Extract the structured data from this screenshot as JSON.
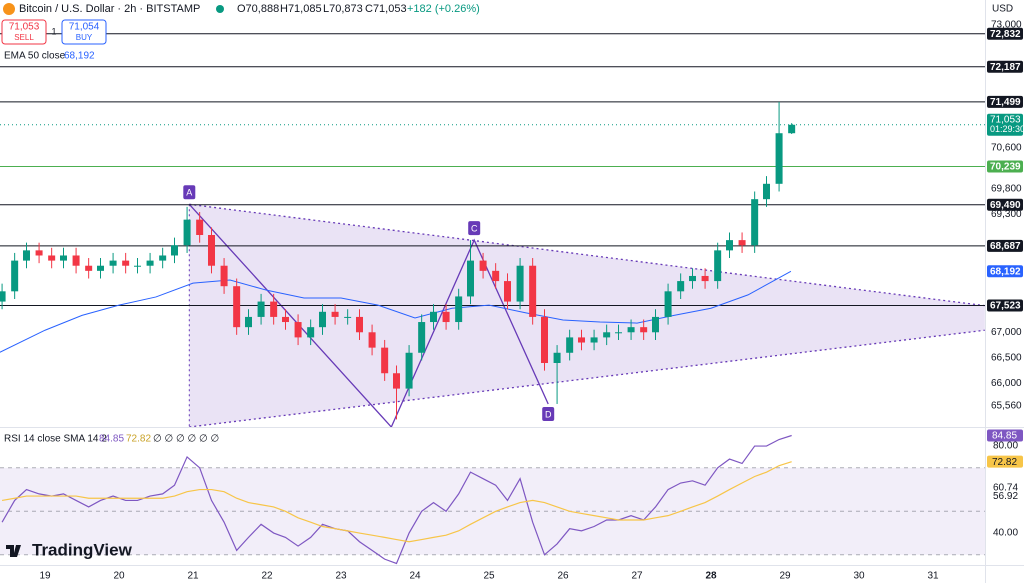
{
  "header": {
    "symbol": "Bitcoin / U.S. Dollar · 2h · BITSTAMP",
    "open": "O70,888",
    "high": "H71,085",
    "low": "L70,873",
    "close": "C71,053",
    "change": "+182 (+0.26%)",
    "sell_price": "71,053",
    "sell": "SELL",
    "spread": "1",
    "buy_price": "71,054",
    "buy": "BUY",
    "currency": "USD",
    "brand": "TradingView"
  },
  "chart_data": {
    "type": "candlestick",
    "x": [
      18.42,
      18.59,
      18.75,
      18.92,
      19.09,
      19.25,
      19.42,
      19.59,
      19.75,
      19.92,
      20.09,
      20.25,
      20.42,
      20.59,
      20.75,
      20.92,
      21.09,
      21.25,
      21.42,
      21.59,
      21.75,
      21.92,
      22.09,
      22.25,
      22.42,
      22.59,
      22.75,
      22.92,
      23.09,
      23.25,
      23.42,
      23.59,
      23.75,
      23.92,
      24.09,
      24.25,
      24.42,
      24.59,
      24.75,
      24.92,
      25.09,
      25.25,
      25.42,
      25.59,
      25.75,
      25.92,
      26.09,
      26.25,
      26.42,
      26.59,
      26.75,
      26.92,
      27.09,
      27.25,
      27.42,
      27.59,
      27.75,
      27.92,
      28.09,
      28.25,
      28.42,
      28.59,
      28.75,
      28.92,
      29.09
    ],
    "open": [
      67600,
      67800,
      68400,
      68600,
      68500,
      68400,
      68500,
      68300,
      68200,
      68300,
      68400,
      68300,
      68300,
      68400,
      68500,
      68700,
      69200,
      68900,
      68300,
      67900,
      67100,
      67300,
      67600,
      67300,
      67200,
      66900,
      67100,
      67400,
      67300,
      67300,
      67000,
      66700,
      66200,
      65900,
      66600,
      67200,
      67400,
      67200,
      67700,
      68400,
      68200,
      68000,
      67600,
      68300,
      67300,
      66400,
      66600,
      66900,
      66800,
      66900,
      67000,
      67000,
      67100,
      67000,
      67300,
      67800,
      68000,
      68100,
      68000,
      68600,
      68800,
      68700,
      69600,
      69900,
      70888
    ],
    "high": [
      67950,
      68550,
      68750,
      68750,
      68650,
      68650,
      68650,
      68450,
      68450,
      68550,
      68550,
      68450,
      68550,
      68650,
      68850,
      69450,
      69350,
      69050,
      68450,
      68050,
      67450,
      67750,
      67750,
      67450,
      67350,
      67250,
      67550,
      67550,
      67450,
      67450,
      67150,
      66850,
      66350,
      66750,
      67350,
      67550,
      67550,
      67850,
      68800,
      68550,
      68350,
      68150,
      68450,
      68450,
      67450,
      66750,
      67050,
      67050,
      67050,
      67150,
      67150,
      67250,
      67250,
      67450,
      67950,
      68150,
      68250,
      68250,
      68750,
      68950,
      68950,
      69750,
      70050,
      71499,
      71085
    ],
    "low": [
      67450,
      67650,
      68250,
      68350,
      68250,
      68250,
      68150,
      68050,
      68050,
      68150,
      68150,
      68150,
      68150,
      68250,
      68350,
      68550,
      68750,
      68150,
      67750,
      66950,
      66950,
      67150,
      67150,
      67050,
      66750,
      66750,
      66950,
      67150,
      67150,
      66850,
      66550,
      66050,
      65300,
      65750,
      66450,
      67050,
      67050,
      67050,
      67550,
      68050,
      67850,
      67450,
      67450,
      67150,
      66250,
      65600,
      66450,
      66650,
      66650,
      66750,
      66850,
      66850,
      66850,
      66850,
      67150,
      67650,
      67850,
      67850,
      67850,
      68450,
      68550,
      68550,
      69450,
      69750,
      70873
    ],
    "close": [
      67800,
      68400,
      68600,
      68500,
      68400,
      68500,
      68300,
      68200,
      68300,
      68400,
      68300,
      68300,
      68400,
      68500,
      68700,
      69200,
      68900,
      68300,
      67900,
      67100,
      67300,
      67600,
      67300,
      67200,
      66900,
      67100,
      67400,
      67300,
      67300,
      67000,
      66700,
      66200,
      65900,
      66600,
      67200,
      67400,
      67200,
      67700,
      68400,
      68200,
      68000,
      67600,
      68300,
      67300,
      66400,
      66600,
      66900,
      66800,
      66900,
      67000,
      67000,
      67100,
      67000,
      67300,
      67800,
      68000,
      68100,
      68000,
      68600,
      68800,
      68700,
      69600,
      69900,
      70888,
      71053
    ],
    "up_color": "#089981",
    "down_color": "#f23645",
    "xlim": [
      18.39,
      31.7
    ],
    "ylim": [
      65150,
      73490
    ],
    "xticks": [
      19,
      20,
      21,
      22,
      23,
      24,
      25,
      26,
      27,
      28,
      29,
      30,
      31
    ],
    "yticks": [
      {
        "value": 73000,
        "label": "73,000"
      },
      {
        "value": 70600,
        "label": "70,600"
      },
      {
        "value": 69800,
        "label": "69,800"
      },
      {
        "value": 69300,
        "label": "69,300"
      },
      {
        "value": 67000,
        "label": "67,000"
      },
      {
        "value": 66500,
        "label": "66,500"
      },
      {
        "value": 66000,
        "label": "66,000"
      },
      {
        "value": 65560,
        "label": "65,560"
      }
    ],
    "ema": {
      "name": "EMA 50 close",
      "color": "#2962ff",
      "label": "68,192",
      "x": [
        18.39,
        19,
        19.5,
        20,
        20.5,
        21,
        21.5,
        22,
        22.5,
        23,
        23.5,
        24,
        24.5,
        25,
        25.5,
        26,
        26.5,
        27,
        27.5,
        28,
        28.5,
        29.08
      ],
      "values": [
        66610,
        67040,
        67330,
        67530,
        67690,
        67960,
        68020,
        67820,
        67670,
        67670,
        67530,
        67280,
        67470,
        67530,
        67380,
        67240,
        67200,
        67180,
        67330,
        67470,
        67730,
        68192
      ]
    },
    "levels": [
      {
        "value": 72832,
        "label": "72,832",
        "color": "#131722"
      },
      {
        "value": 72187,
        "label": "72,187",
        "color": "#131722"
      },
      {
        "value": 71499,
        "label": "71,499",
        "color": "#131722"
      },
      {
        "value": 70239,
        "label": "70,239",
        "color": "#4caf50"
      },
      {
        "value": 69490,
        "label": "69,490",
        "color": "#131722"
      },
      {
        "value": 68687,
        "label": "68,687",
        "color": "#131722"
      },
      {
        "value": 67523,
        "label": "67,523",
        "color": "#131722"
      }
    ],
    "last": {
      "value": 71053,
      "label": "71,053",
      "timer": "01:29:30",
      "color": "#089981"
    },
    "pattern": {
      "color": "#673ab7",
      "points": [
        {
          "x": 20.95,
          "price": 69500,
          "label": "A"
        },
        {
          "x": 23.68,
          "price": 65150
        },
        {
          "x": 24.8,
          "price": 68800,
          "label": "C"
        },
        {
          "x": 25.8,
          "price": 65600,
          "label": "D"
        }
      ],
      "upper": [
        {
          "x": 20.95,
          "price": 69500
        },
        {
          "x": 31.7,
          "price": 67520
        }
      ],
      "lower": [
        {
          "x": 20.95,
          "price": 65150
        },
        {
          "x": 31.7,
          "price": 67040
        }
      ]
    },
    "rsi": {
      "legend": "RSI 14 close SMA 14 2",
      "extra": "∅ ∅ ∅ ∅ ∅ ∅",
      "ylim": [
        25.3,
        88.3
      ],
      "band": [
        30,
        70
      ],
      "mid": 50,
      "yticks": [
        {
          "value": 80,
          "label": "80.00"
        },
        {
          "value": 60.74,
          "label": "60.74"
        },
        {
          "value": 56.92,
          "label": "56.92"
        },
        {
          "value": 40,
          "label": "40.00"
        }
      ],
      "series": [
        {
          "name": "RSI",
          "color": "#7e57c2",
          "label": "84.85",
          "values": [
            45,
            55,
            60,
            58,
            57,
            58,
            55,
            52,
            55,
            57,
            55,
            55,
            57,
            58,
            62,
            75,
            70,
            55,
            45,
            32,
            38,
            44,
            40,
            38,
            34,
            38,
            44,
            42,
            41,
            36,
            32,
            28,
            26,
            40,
            50,
            54,
            50,
            58,
            68,
            65,
            62,
            55,
            65,
            45,
            30,
            35,
            42,
            41,
            43,
            46,
            46,
            48,
            46,
            52,
            60,
            63,
            64,
            62,
            70,
            74,
            72,
            80,
            80,
            83,
            84.85
          ]
        },
        {
          "name": "SMA",
          "color": "#f7c548",
          "label": "72.82",
          "values": [
            55,
            56,
            57,
            57,
            57,
            57,
            57,
            56,
            56,
            56,
            56,
            56,
            56,
            56,
            57,
            59,
            60,
            60,
            59,
            56,
            54,
            53,
            52,
            50,
            47,
            45,
            43,
            42,
            41,
            40,
            39,
            38,
            37,
            36,
            37,
            38,
            39,
            41,
            44,
            47,
            50,
            52,
            54,
            55,
            54,
            52,
            50,
            49,
            48,
            47,
            46,
            46,
            46,
            47,
            48,
            50,
            52,
            54,
            57,
            60,
            63,
            66,
            68,
            71,
            72.82
          ]
        }
      ]
    }
  }
}
